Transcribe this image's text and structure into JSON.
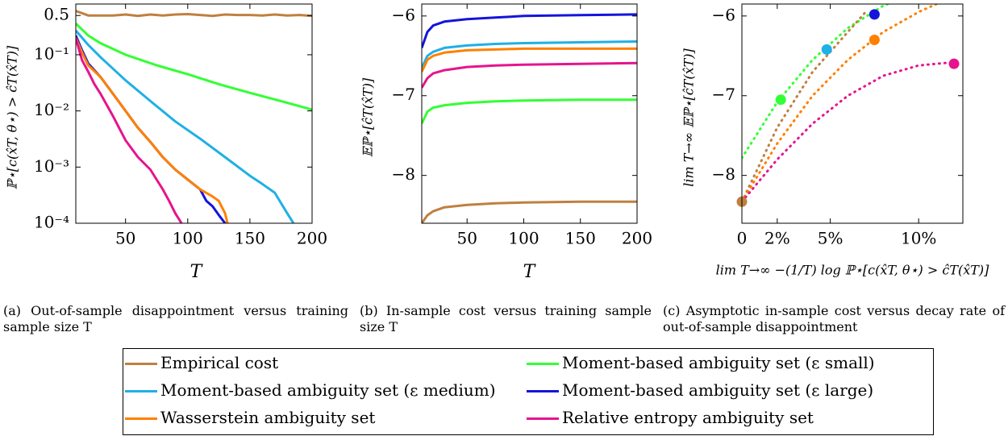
{
  "colors": {
    "empirical": "#bf8040",
    "moment_medium": "#1fb0e6",
    "wasserstein": "#ff8000",
    "moment_small": "#33ff33",
    "moment_large": "#1414dc",
    "rel_entropy": "#e6148c"
  },
  "captions": [
    "(a) Out-of-sample disappointment versus training sample size T",
    "(b) In-sample cost versus training sample size T",
    "(c) Asymptotic in-sample cost versus decay rate of out-of-sample disappointment"
  ],
  "legend": [
    {
      "label": "Empirical cost",
      "color": "#bf8040"
    },
    {
      "label": "Moment-based ambiguity set (ε small)",
      "color": "#33ff33"
    },
    {
      "label": "Moment-based ambiguity set (ε medium)",
      "color": "#1fb0e6"
    },
    {
      "label": "Moment-based ambiguity set (ε large)",
      "color": "#1414dc"
    },
    {
      "label": "Wasserstein ambiguity set",
      "color": "#ff8000"
    },
    {
      "label": "Relative entropy ambiguity set",
      "color": "#e6148c"
    }
  ],
  "chart_data": [
    {
      "type": "line",
      "xlabel": "T",
      "ylabel": "ℙ⋆[c(x̂T, θ⋆) > ĉT(x̂T)]",
      "xlim": [
        10,
        200
      ],
      "ylim": [
        0.0001,
        0.8
      ],
      "yscale": "log",
      "xticks": [
        "50",
        "100",
        "150",
        "200"
      ],
      "yticks": [
        "0.5",
        "10⁻¹",
        "10⁻²",
        "10⁻³",
        "10⁻⁴"
      ],
      "series": [
        {
          "key": "empirical",
          "x": [
            10,
            15,
            20,
            30,
            40,
            50,
            60,
            70,
            80,
            90,
            100,
            110,
            120,
            130,
            140,
            150,
            160,
            170,
            180,
            190,
            200
          ],
          "y": [
            0.6,
            0.55,
            0.5,
            0.5,
            0.5,
            0.52,
            0.49,
            0.52,
            0.5,
            0.52,
            0.53,
            0.51,
            0.49,
            0.52,
            0.51,
            0.51,
            0.5,
            0.52,
            0.5,
            0.51,
            0.49
          ]
        },
        {
          "key": "moment_small",
          "x": [
            10,
            20,
            30,
            50,
            75,
            100,
            125,
            150,
            175,
            200
          ],
          "y": [
            0.36,
            0.22,
            0.16,
            0.1,
            0.065,
            0.045,
            0.03,
            0.021,
            0.015,
            0.0105
          ]
        },
        {
          "key": "moment_medium",
          "x": [
            10,
            20,
            30,
            50,
            70,
            90,
            110,
            130,
            150,
            160,
            170,
            180,
            185
          ],
          "y": [
            0.27,
            0.15,
            0.09,
            0.035,
            0.015,
            0.0065,
            0.0032,
            0.0015,
            0.0007,
            0.0005,
            0.00035,
            0.00015,
            0.0001
          ]
        },
        {
          "key": "moment_large",
          "x": [
            10,
            15,
            20,
            30,
            40,
            50,
            60,
            70,
            80,
            90,
            100,
            110,
            115,
            120,
            125,
            130
          ],
          "y": [
            0.22,
            0.12,
            0.07,
            0.04,
            0.02,
            0.01,
            0.005,
            0.0028,
            0.0015,
            0.0009,
            0.0006,
            0.0004,
            0.00025,
            0.0002,
            0.00014,
            0.0001
          ]
        },
        {
          "key": "wasserstein",
          "x": [
            10,
            15,
            20,
            30,
            40,
            50,
            60,
            70,
            80,
            90,
            100,
            110,
            120,
            125,
            130,
            132
          ],
          "y": [
            0.2,
            0.11,
            0.065,
            0.04,
            0.02,
            0.01,
            0.005,
            0.0028,
            0.0015,
            0.0009,
            0.0006,
            0.0004,
            0.0003,
            0.00025,
            0.00015,
            0.0001
          ]
        },
        {
          "key": "rel_entropy",
          "x": [
            10,
            15,
            20,
            25,
            30,
            40,
            50,
            60,
            70,
            80,
            85,
            90,
            95
          ],
          "y": [
            0.2,
            0.08,
            0.05,
            0.03,
            0.02,
            0.008,
            0.003,
            0.0015,
            0.0009,
            0.0004,
            0.00025,
            0.00015,
            0.0001
          ]
        }
      ]
    },
    {
      "type": "line",
      "xlabel": "T",
      "ylabel": "𝔼ℙ⋆[ĉT(x̂T)]",
      "xlim": [
        10,
        200
      ],
      "ylim": [
        -8.6,
        -5.85
      ],
      "xticks": [
        "50",
        "100",
        "150",
        "200"
      ],
      "yticks": [
        "−6",
        "−7",
        "−8"
      ],
      "series": [
        {
          "key": "moment_large",
          "x": [
            10,
            15,
            20,
            30,
            50,
            75,
            100,
            150,
            200
          ],
          "y": [
            -6.4,
            -6.2,
            -6.12,
            -6.07,
            -6.04,
            -6.02,
            -6.0,
            -5.99,
            -5.98
          ]
        },
        {
          "key": "moment_medium",
          "x": [
            10,
            15,
            20,
            30,
            50,
            75,
            100,
            150,
            200
          ],
          "y": [
            -6.65,
            -6.5,
            -6.45,
            -6.4,
            -6.37,
            -6.35,
            -6.34,
            -6.33,
            -6.32
          ]
        },
        {
          "key": "wasserstein",
          "x": [
            10,
            15,
            20,
            30,
            50,
            75,
            100,
            150,
            200
          ],
          "y": [
            -6.7,
            -6.55,
            -6.5,
            -6.46,
            -6.43,
            -6.42,
            -6.41,
            -6.41,
            -6.41
          ]
        },
        {
          "key": "rel_entropy",
          "x": [
            10,
            15,
            20,
            30,
            50,
            75,
            100,
            150,
            200
          ],
          "y": [
            -6.9,
            -6.78,
            -6.72,
            -6.68,
            -6.64,
            -6.62,
            -6.61,
            -6.6,
            -6.59
          ]
        },
        {
          "key": "moment_small",
          "x": [
            10,
            15,
            20,
            30,
            50,
            75,
            100,
            150,
            200
          ],
          "y": [
            -7.35,
            -7.2,
            -7.15,
            -7.12,
            -7.09,
            -7.07,
            -7.06,
            -7.05,
            -7.05
          ]
        },
        {
          "key": "empirical",
          "x": [
            10,
            15,
            20,
            30,
            50,
            75,
            100,
            150,
            200
          ],
          "y": [
            -8.6,
            -8.5,
            -8.45,
            -8.4,
            -8.37,
            -8.35,
            -8.34,
            -8.33,
            -8.33
          ]
        }
      ]
    },
    {
      "type": "line",
      "xlabel": "lim T→∞ −(1/T) log ℙ⋆[c(x̂T, θ⋆) > ĉT(x̂T)]",
      "ylabel": "lim T→∞ 𝔼ℙ⋆[ĉT(x̂T)]",
      "xlim": [
        0,
        0.125
      ],
      "ylim": [
        -8.6,
        -5.85
      ],
      "xticks": [
        "0",
        "2%",
        "5%",
        "10%"
      ],
      "yticks": [
        "−6",
        "−7",
        "−8"
      ],
      "series": [
        {
          "key": "moment_small",
          "style": "dotted",
          "x": [
            0,
            0.02,
            0.04,
            0.06,
            0.08,
            0.1
          ],
          "y": [
            -7.78,
            -7.08,
            -6.55,
            -6.15,
            -5.87,
            -5.7
          ]
        },
        {
          "key": "empirical",
          "style": "dotted",
          "x": [
            0,
            0.02,
            0.04,
            0.06,
            0.07
          ],
          "y": [
            -8.33,
            -7.4,
            -6.7,
            -6.2,
            -5.95
          ]
        },
        {
          "key": "wasserstein",
          "style": "dotted",
          "x": [
            0,
            0.02,
            0.04,
            0.06,
            0.08,
            0.1,
            0.115
          ],
          "y": [
            -8.33,
            -7.6,
            -7.0,
            -6.55,
            -6.2,
            -5.95,
            -5.8
          ]
        },
        {
          "key": "rel_entropy",
          "style": "dotted",
          "x": [
            0,
            0.02,
            0.04,
            0.06,
            0.08,
            0.1,
            0.12
          ],
          "y": [
            -8.33,
            -7.8,
            -7.35,
            -7.0,
            -6.75,
            -6.62,
            -6.58
          ]
        }
      ],
      "points": [
        {
          "key": "empirical",
          "x": 0,
          "y": -8.33
        },
        {
          "key": "moment_small",
          "x": 0.022,
          "y": -7.05
        },
        {
          "key": "moment_medium",
          "x": 0.048,
          "y": -6.42
        },
        {
          "key": "moment_large",
          "x": 0.075,
          "y": -5.98
        },
        {
          "key": "wasserstein",
          "x": 0.075,
          "y": -6.3
        },
        {
          "key": "rel_entropy",
          "x": 0.12,
          "y": -6.6
        }
      ]
    }
  ]
}
